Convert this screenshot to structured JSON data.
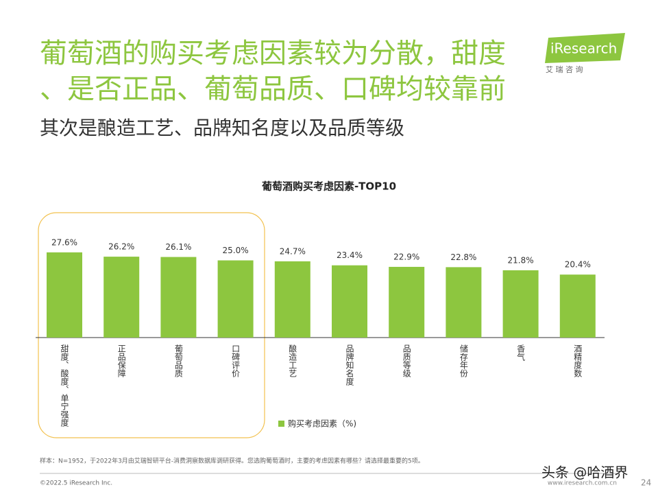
{
  "slide": {
    "headline": [
      "葡萄酒的购买考虑因素较为分散，甜度",
      "、是否正品、葡萄品质、口碑均较靠前"
    ],
    "subheadline": "其次是酿造工艺、品牌知名度以及品质等级",
    "logo": "iResearch",
    "logo_sub": "艾 瑞 咨 询",
    "note": "样本：N=1952，于2022年3月由艾瑞智研平台-消费洞察数据库调研获得。您选购葡萄酒时，主要的考虑因素有哪些？请选择最重要的5项。",
    "copyright": "©2022.5 iResearch Inc.",
    "website": "www.iresearch.com.cn",
    "page": "24",
    "watermark": "头条 @哈酒界"
  },
  "chart_data": {
    "type": "bar",
    "title": "葡萄酒购买考虑因素-TOP10",
    "categories": [
      "甜度、酸度、单宁强度",
      "正品保障",
      "葡萄品质",
      "口碑评价",
      "酿造工艺",
      "品牌知名度",
      "品质等级",
      "储存年份",
      "香气",
      "酒精度数"
    ],
    "series": [
      {
        "name": "购买考虑因素（%)",
        "color": "#8dc63f",
        "values": [
          27.6,
          26.2,
          26.1,
          25.0,
          24.7,
          23.4,
          22.9,
          22.8,
          21.8,
          20.4
        ],
        "value_labels": [
          "27.6%",
          "26.2%",
          "26.1%",
          "25.0%",
          "24.7%",
          "23.4%",
          "22.9%",
          "22.8%",
          "21.8%",
          "20.4%"
        ]
      }
    ],
    "legend": "bottom"
  }
}
